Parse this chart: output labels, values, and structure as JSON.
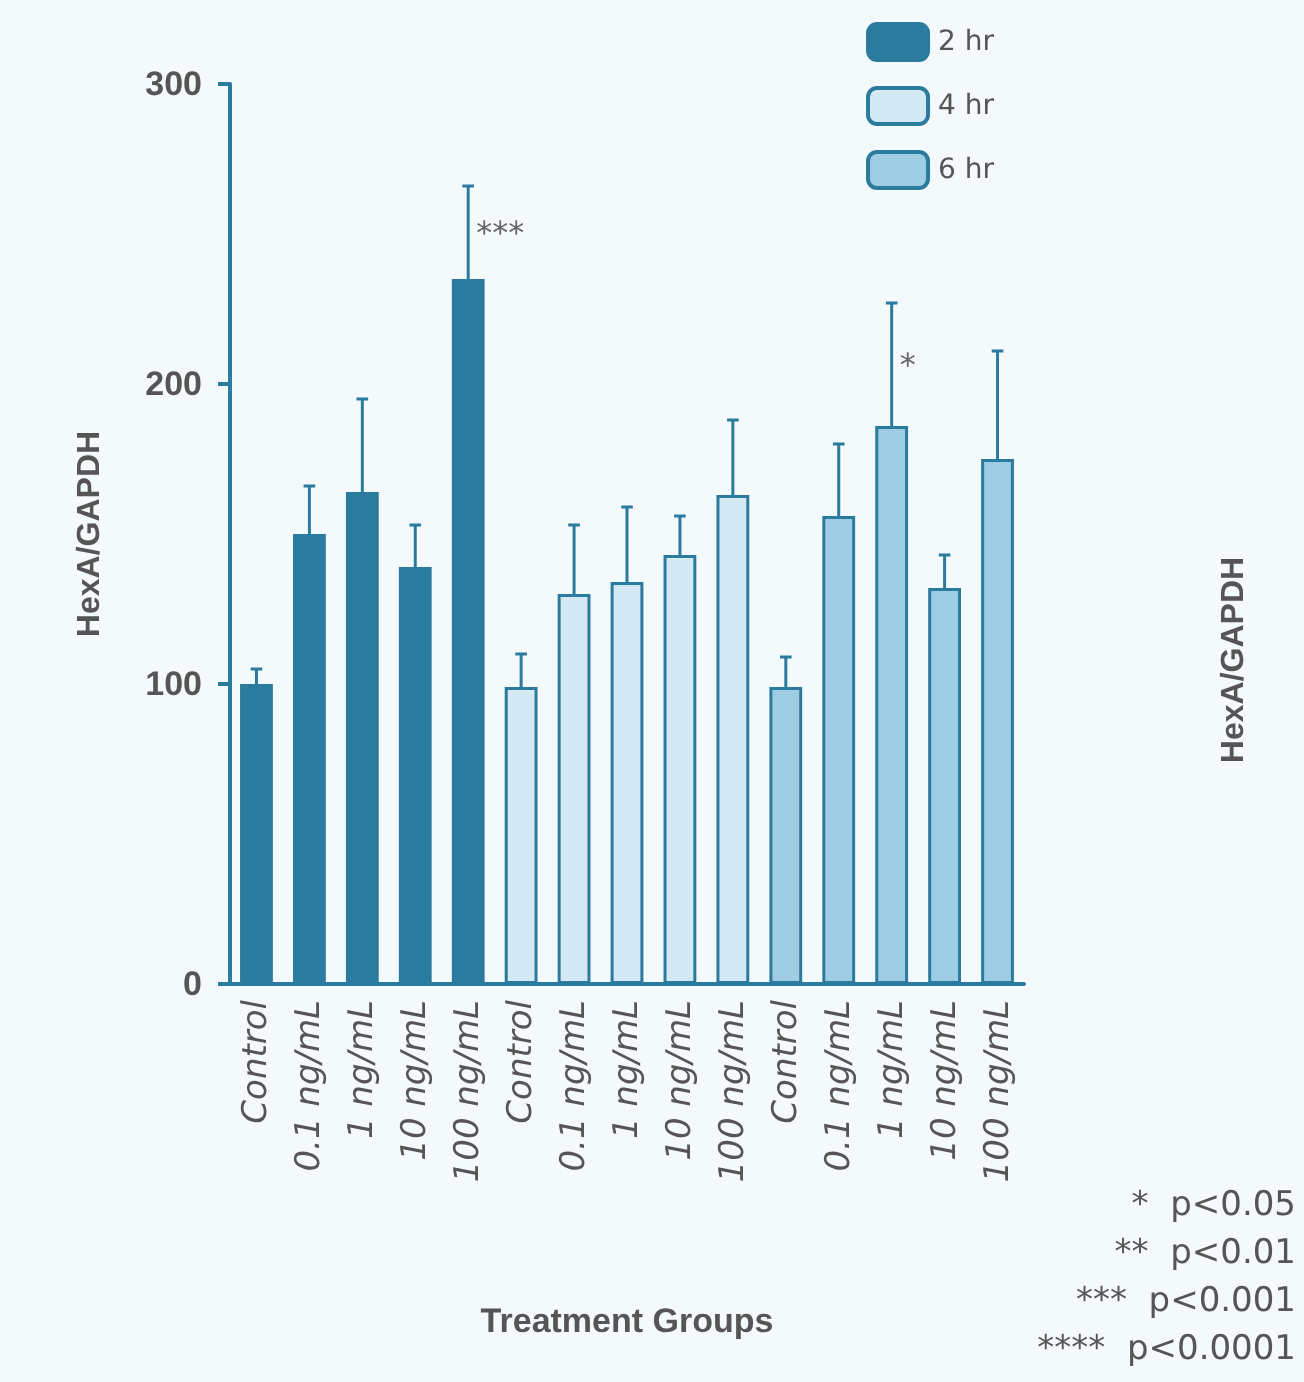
{
  "chart_data": {
    "type": "bar",
    "xlabel": "Treatment Groups",
    "ylabel": "HexA/GAPDH",
    "categories": [
      "Control",
      "0.1 ng/mL",
      "1 ng/mL",
      "10 ng/mL",
      "100 ng/mL",
      "Control",
      "0.1 ng/mL",
      "1 ng/mL",
      "10 ng/mL",
      "100 ng/mL",
      "Control",
      "0.1 ng/mL",
      "1 ng/mL",
      "10 ng/mL",
      "100 ng/mL"
    ],
    "series": [
      {
        "name": "2 hr",
        "color": "#2b7b9e",
        "values": [
          100,
          150,
          164,
          139,
          235,
          null,
          null,
          null,
          null,
          null,
          null,
          null,
          null,
          null,
          null
        ],
        "errors": [
          [
            100,
            105
          ],
          [
            150,
            166
          ],
          [
            164,
            195
          ],
          [
            139,
            153
          ],
          [
            235,
            266
          ],
          null,
          null,
          null,
          null,
          null,
          null,
          null,
          null,
          null,
          null
        ],
        "value_labels": [
          null,
          null,
          null,
          null,
          "***",
          null,
          null,
          null,
          null,
          null,
          null,
          null,
          null,
          null,
          null
        ]
      },
      {
        "name": "4 hr",
        "color": "#d4e9f4",
        "values": [
          null,
          null,
          null,
          null,
          null,
          99,
          130,
          134,
          143,
          163,
          null,
          null,
          null,
          null,
          null
        ],
        "errors": [
          null,
          null,
          null,
          null,
          null,
          [
            99,
            110
          ],
          [
            130,
            153
          ],
          [
            134,
            159
          ],
          [
            143,
            156
          ],
          [
            163,
            188
          ],
          null,
          null,
          null,
          null,
          null
        ]
      },
      {
        "name": "6 hr",
        "color": "#9ecde3",
        "values": [
          null,
          null,
          null,
          null,
          null,
          null,
          null,
          null,
          null,
          null,
          99,
          156,
          186,
          132,
          175
        ],
        "errors": [
          null,
          null,
          null,
          null,
          null,
          null,
          null,
          null,
          null,
          null,
          [
            99,
            109
          ],
          [
            156,
            180
          ],
          [
            186,
            227
          ],
          [
            132,
            143
          ],
          [
            175,
            211
          ]
        ],
        "value_labels": [
          null,
          null,
          null,
          null,
          null,
          null,
          null,
          null,
          null,
          null,
          null,
          null,
          "*",
          null,
          null
        ]
      }
    ],
    "ylim": [
      0,
      300
    ],
    "yticks": [
      0,
      100,
      200,
      300
    ],
    "grid": false,
    "legend": "top right",
    "annotations": [
      "*  p<0.05",
      "**  p<0.01",
      "***  p<0.001",
      "****  p<0.0001",
      "HexA/GAPDH"
    ]
  }
}
